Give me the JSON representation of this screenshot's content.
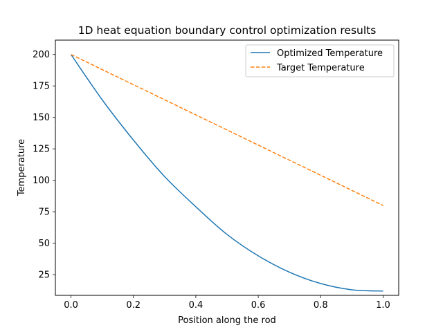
{
  "chart_data": {
    "type": "line",
    "title": "1D heat equation boundary control optimization results",
    "xlabel": "Position along the rod",
    "ylabel": "Temperature",
    "xlim": [
      -0.05,
      1.05
    ],
    "ylim": [
      8.6,
      211.4
    ],
    "xticks": [
      0.0,
      0.2,
      0.4,
      0.6,
      0.8,
      1.0
    ],
    "xtick_labels": [
      "0.0",
      "0.2",
      "0.4",
      "0.6",
      "0.8",
      "1.0"
    ],
    "yticks": [
      25,
      50,
      75,
      100,
      125,
      150,
      175,
      200
    ],
    "ytick_labels": [
      "25",
      "50",
      "75",
      "100",
      "125",
      "150",
      "175",
      "200"
    ],
    "grid": false,
    "legend_position": "top-right",
    "series": [
      {
        "name": "Optimized Temperature",
        "color": "#1f77b4",
        "style": "solid",
        "x": [
          0.0,
          0.1,
          0.2,
          0.3,
          0.4,
          0.5,
          0.6,
          0.7,
          0.8,
          0.9,
          1.0
        ],
        "y": [
          200,
          164,
          132,
          103,
          79,
          57,
          40,
          27,
          18,
          13,
          12
        ]
      },
      {
        "name": "Target Temperature",
        "color": "#ff7f0e",
        "style": "dashed",
        "x": [
          0.0,
          1.0
        ],
        "y": [
          200,
          80
        ]
      }
    ]
  }
}
